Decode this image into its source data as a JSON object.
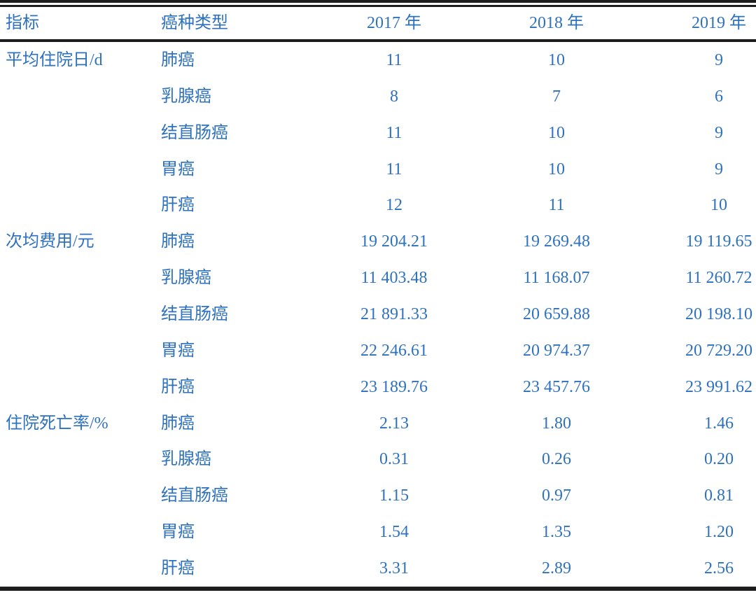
{
  "colors": {
    "text_blue": "#2e71bd",
    "rule_black": "#1d1d1d",
    "background": "#ffffff"
  },
  "table": {
    "columns": [
      "指标",
      "癌种类型",
      "2017 年",
      "2018 年",
      "2019 年"
    ],
    "groups": [
      {
        "indicator": "平均住院日/d",
        "rows": [
          {
            "type": "肺癌",
            "values": [
              "11",
              "10",
              "9"
            ]
          },
          {
            "type": "乳腺癌",
            "values": [
              "8",
              "7",
              "6"
            ]
          },
          {
            "type": "结直肠癌",
            "values": [
              "11",
              "10",
              "9"
            ]
          },
          {
            "type": "胃癌",
            "values": [
              "11",
              "10",
              "9"
            ]
          },
          {
            "type": "肝癌",
            "values": [
              "12",
              "11",
              "10"
            ]
          }
        ]
      },
      {
        "indicator": "次均费用/元",
        "rows": [
          {
            "type": "肺癌",
            "values": [
              "19 204.21",
              "19 269.48",
              "19 119.65"
            ]
          },
          {
            "type": "乳腺癌",
            "values": [
              "11 403.48",
              "11 168.07",
              "11 260.72"
            ]
          },
          {
            "type": "结直肠癌",
            "values": [
              "21 891.33",
              "20 659.88",
              "20 198.10"
            ]
          },
          {
            "type": "胃癌",
            "values": [
              "22 246.61",
              "20 974.37",
              "20 729.20"
            ]
          },
          {
            "type": "肝癌",
            "values": [
              "23 189.76",
              "23 457.76",
              "23 991.62"
            ]
          }
        ]
      },
      {
        "indicator": "住院死亡率/%",
        "rows": [
          {
            "type": "肺癌",
            "values": [
              "2.13",
              "1.80",
              "1.46"
            ]
          },
          {
            "type": "乳腺癌",
            "values": [
              "0.31",
              "0.26",
              "0.20"
            ]
          },
          {
            "type": "结直肠癌",
            "values": [
              "1.15",
              "0.97",
              "0.81"
            ]
          },
          {
            "type": "胃癌",
            "values": [
              "1.54",
              "1.35",
              "1.20"
            ]
          },
          {
            "type": "肝癌",
            "values": [
              "3.31",
              "2.89",
              "2.56"
            ]
          }
        ]
      }
    ]
  },
  "chart_data": {
    "type": "table",
    "title": "",
    "columns": [
      "指标",
      "癌种类型",
      "2017 年",
      "2018 年",
      "2019 年"
    ],
    "rows": [
      [
        "平均住院日/d",
        "肺癌",
        11,
        10,
        9
      ],
      [
        "平均住院日/d",
        "乳腺癌",
        8,
        7,
        6
      ],
      [
        "平均住院日/d",
        "结直肠癌",
        11,
        10,
        9
      ],
      [
        "平均住院日/d",
        "胃癌",
        11,
        10,
        9
      ],
      [
        "平均住院日/d",
        "肝癌",
        12,
        11,
        10
      ],
      [
        "次均费用/元",
        "肺癌",
        19204.21,
        19269.48,
        19119.65
      ],
      [
        "次均费用/元",
        "乳腺癌",
        11403.48,
        11168.07,
        11260.72
      ],
      [
        "次均费用/元",
        "结直肠癌",
        21891.33,
        20659.88,
        20198.1
      ],
      [
        "次均费用/元",
        "胃癌",
        22246.61,
        20974.37,
        20729.2
      ],
      [
        "次均费用/元",
        "肝癌",
        23189.76,
        23457.76,
        23991.62
      ],
      [
        "住院死亡率/%",
        "肺癌",
        2.13,
        1.8,
        1.46
      ],
      [
        "住院死亡率/%",
        "乳腺癌",
        0.31,
        0.26,
        0.2
      ],
      [
        "住院死亡率/%",
        "结直肠癌",
        1.15,
        0.97,
        0.81
      ],
      [
        "住院死亡率/%",
        "胃癌",
        1.54,
        1.35,
        1.2
      ],
      [
        "住院死亡率/%",
        "肝癌",
        3.31,
        2.89,
        2.56
      ]
    ]
  }
}
